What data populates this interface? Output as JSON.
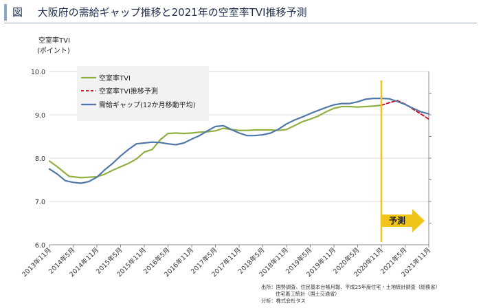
{
  "header": {
    "figure_label": "図",
    "title": "大阪府の需給ギャップ推移と2021年の空室率TVI推移予測"
  },
  "chart_data": {
    "type": "line",
    "ylabel_line1": "空室率TVI",
    "ylabel_line2": "(ポイント)",
    "ylim": [
      6.0,
      10.0
    ],
    "yticks": [
      "6.0",
      "7.0",
      "8.0",
      "9.0",
      "10.0"
    ],
    "xlim": [
      0,
      96
    ],
    "x_tick_labels": [
      "2013年11月",
      "2014年5月",
      "2014年11月",
      "2015年5月",
      "2015年11月",
      "2016年5月",
      "2016年11月",
      "2017年5月",
      "2017年11月",
      "2018年5月",
      "2018年11月",
      "2019年5月",
      "2019年11月",
      "2020年5月",
      "2020年11月",
      "2021年5月",
      "2021年11月"
    ],
    "forecast_start_index": 84,
    "forecast_label": "予測",
    "legend_position": "top-left",
    "series": [
      {
        "name": "空室率TVI",
        "color": "#8fb040",
        "style": "solid",
        "x": [
          0,
          2,
          4,
          5,
          6,
          8,
          10,
          12,
          14,
          16,
          18,
          20,
          22,
          24,
          26,
          28,
          30,
          32,
          34,
          36,
          38,
          40,
          42,
          44,
          46,
          48,
          50,
          52,
          54,
          56,
          58,
          60,
          62,
          64,
          66,
          68,
          70,
          72,
          74,
          76,
          78,
          80,
          82,
          84
        ],
        "values": [
          7.93,
          7.8,
          7.65,
          7.58,
          7.57,
          7.55,
          7.56,
          7.57,
          7.63,
          7.72,
          7.8,
          7.88,
          7.98,
          8.14,
          8.2,
          8.42,
          8.57,
          8.58,
          8.57,
          8.58,
          8.6,
          8.61,
          8.63,
          8.69,
          8.66,
          8.64,
          8.64,
          8.65,
          8.65,
          8.65,
          8.64,
          8.66,
          8.75,
          8.84,
          8.9,
          8.97,
          9.07,
          9.15,
          9.19,
          9.19,
          9.18,
          9.19,
          9.2,
          9.22
        ]
      },
      {
        "name": "空室率TVI推移予測",
        "color": "#d0021b",
        "style": "dashed",
        "x": [
          84,
          86,
          88,
          90,
          92,
          94,
          96
        ],
        "values": [
          9.22,
          9.28,
          9.33,
          9.25,
          9.13,
          9.02,
          8.9
        ]
      },
      {
        "name": "需給ギャップ(12か月移動平均)",
        "color": "#4f77a8",
        "style": "solid",
        "x": [
          0,
          2,
          4,
          6,
          8,
          10,
          12,
          14,
          16,
          18,
          20,
          22,
          24,
          26,
          28,
          30,
          32,
          34,
          36,
          38,
          40,
          42,
          44,
          46,
          48,
          50,
          52,
          54,
          56,
          58,
          60,
          62,
          64,
          66,
          68,
          70,
          72,
          74,
          76,
          78,
          80,
          82,
          84,
          86,
          88,
          90,
          92,
          94,
          96
        ],
        "values": [
          7.75,
          7.63,
          7.48,
          7.44,
          7.42,
          7.46,
          7.56,
          7.73,
          7.88,
          8.05,
          8.2,
          8.33,
          8.35,
          8.37,
          8.36,
          8.33,
          8.31,
          8.35,
          8.44,
          8.52,
          8.63,
          8.73,
          8.75,
          8.66,
          8.58,
          8.52,
          8.52,
          8.54,
          8.58,
          8.67,
          8.79,
          8.88,
          8.95,
          9.03,
          9.1,
          9.17,
          9.23,
          9.26,
          9.26,
          9.3,
          9.36,
          9.38,
          9.38,
          9.37,
          9.31,
          9.24,
          9.15,
          9.07,
          9.02
        ]
      }
    ]
  },
  "source": {
    "line1": "出所：国勢調査、住民基本台帳月報、平成25年度住宅・土地統計調査（総務省）",
    "line2": "住宅着工統計（国土交通省）",
    "line3": "分析：株式会社タス"
  }
}
